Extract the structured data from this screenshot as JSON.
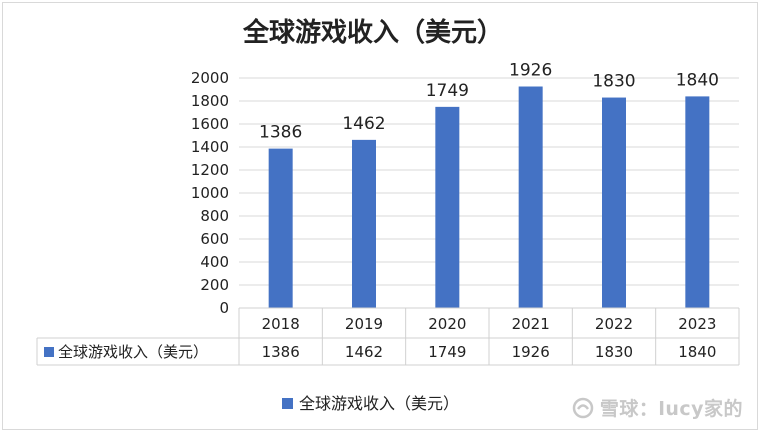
{
  "chart_data": {
    "type": "bar",
    "title": "全球游戏收入（美元）",
    "categories": [
      "2018",
      "2019",
      "2020",
      "2021",
      "2022",
      "2023"
    ],
    "series": [
      {
        "name": "全球游戏收入（美元）",
        "values": [
          1386,
          1462,
          1749,
          1926,
          1830,
          1840
        ],
        "color": "#4472c4"
      }
    ],
    "ylim": [
      0,
      2000
    ],
    "yticks": [
      0,
      200,
      400,
      600,
      800,
      1000,
      1200,
      1400,
      1600,
      1800,
      2000
    ],
    "grid": true,
    "data_table": true,
    "legend_position": "bottom"
  },
  "watermark": "雪球：lucy家的"
}
